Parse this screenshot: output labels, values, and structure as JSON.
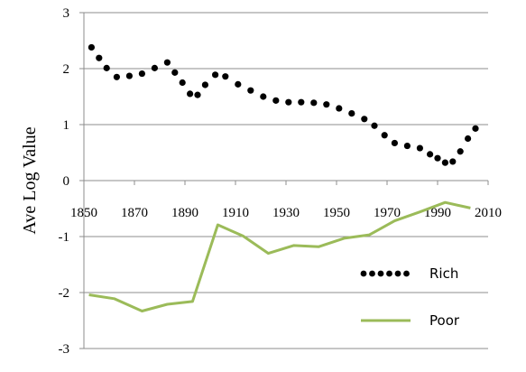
{
  "chart_data": {
    "type": "line",
    "title": "",
    "xlabel": "",
    "ylabel": "Ave Log Value",
    "xlim": [
      1850,
      2010
    ],
    "ylim": [
      -3,
      3
    ],
    "x_ticks": [
      1850,
      1870,
      1890,
      1910,
      1930,
      1950,
      1970,
      1990,
      2010
    ],
    "y_ticks": [
      3,
      2,
      1,
      0,
      -1,
      -2,
      -3
    ],
    "grid": "horizontal",
    "legend_position": "bottom-right",
    "series": [
      {
        "name": "Rich",
        "style": "dotted",
        "color": "#000000",
        "points": [
          [
            1853,
            2.38
          ],
          [
            1856,
            2.19
          ],
          [
            1859,
            2.01
          ],
          [
            1863,
            1.85
          ],
          [
            1868,
            1.87
          ],
          [
            1873,
            1.91
          ],
          [
            1878,
            2.01
          ],
          [
            1883,
            2.11
          ],
          [
            1886,
            1.93
          ],
          [
            1889,
            1.75
          ],
          [
            1892,
            1.55
          ],
          [
            1895,
            1.53
          ],
          [
            1898,
            1.71
          ],
          [
            1902,
            1.89
          ],
          [
            1906,
            1.86
          ],
          [
            1911,
            1.72
          ],
          [
            1916,
            1.61
          ],
          [
            1921,
            1.5
          ],
          [
            1926,
            1.43
          ],
          [
            1931,
            1.4
          ],
          [
            1936,
            1.4
          ],
          [
            1941,
            1.39
          ],
          [
            1946,
            1.36
          ],
          [
            1951,
            1.29
          ],
          [
            1956,
            1.2
          ],
          [
            1961,
            1.1
          ],
          [
            1965,
            0.98
          ],
          [
            1969,
            0.81
          ],
          [
            1973,
            0.67
          ],
          [
            1978,
            0.62
          ],
          [
            1983,
            0.58
          ],
          [
            1987,
            0.47
          ],
          [
            1990,
            0.4
          ],
          [
            1993,
            0.32
          ],
          [
            1996,
            0.34
          ],
          [
            1999,
            0.52
          ],
          [
            2002,
            0.75
          ],
          [
            2005,
            0.93
          ]
        ]
      },
      {
        "name": "Poor",
        "style": "solid",
        "color": "#9BBB59",
        "points": [
          [
            1852,
            -2.04
          ],
          [
            1862,
            -2.11
          ],
          [
            1873,
            -2.33
          ],
          [
            1883,
            -2.21
          ],
          [
            1893,
            -2.16
          ],
          [
            1903,
            -0.79
          ],
          [
            1913,
            -0.99
          ],
          [
            1923,
            -1.3
          ],
          [
            1933,
            -1.16
          ],
          [
            1943,
            -1.18
          ],
          [
            1953,
            -1.03
          ],
          [
            1963,
            -0.97
          ],
          [
            1973,
            -0.72
          ],
          [
            1983,
            -0.56
          ],
          [
            1993,
            -0.39
          ],
          [
            2003,
            -0.49
          ]
        ]
      }
    ]
  }
}
